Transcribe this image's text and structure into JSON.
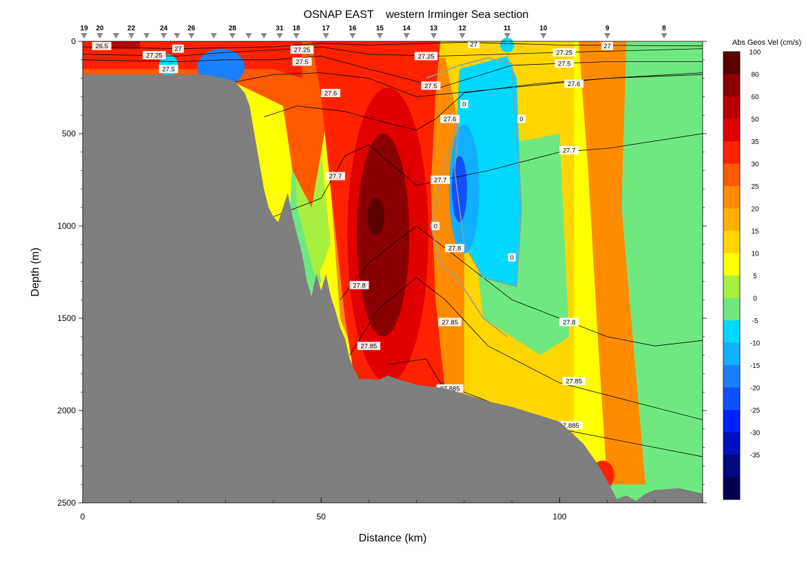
{
  "chart_data": {
    "type": "heatmap",
    "title": "OSNAP EAST    western Irminger Sea section",
    "xlabel": "Distance (km)",
    "ylabel": "Depth (m)",
    "xlim": [
      0,
      130
    ],
    "ylim": [
      0,
      2500
    ],
    "x_ticks": [
      "0",
      "50",
      "100"
    ],
    "x_tick_values": [
      0,
      50,
      100
    ],
    "y_ticks": [
      "0",
      "500",
      "1000",
      "1500",
      "2000",
      "2500"
    ],
    "y_tick_values": [
      0,
      500,
      1000,
      1500,
      2000,
      2500
    ],
    "stations": [
      {
        "label": "19",
        "km": 0.3
      },
      {
        "label": "20",
        "km": 3.6
      },
      {
        "label": "",
        "km": 7.0
      },
      {
        "label": "22",
        "km": 10.2
      },
      {
        "label": "",
        "km": 13.4
      },
      {
        "label": "24",
        "km": 17.0
      },
      {
        "label": "",
        "km": 19.8
      },
      {
        "label": "26",
        "km": 22.8
      },
      {
        "label": "",
        "km": 27.5
      },
      {
        "label": "28",
        "km": 31.4
      },
      {
        "label": "",
        "km": 34.8
      },
      {
        "label": "",
        "km": 38.0
      },
      {
        "label": "31",
        "km": 41.3
      },
      {
        "label": "18",
        "km": 44.8
      },
      {
        "label": "17",
        "km": 51.0
      },
      {
        "label": "16",
        "km": 56.6
      },
      {
        "label": "15",
        "km": 62.3
      },
      {
        "label": "14",
        "km": 67.9
      },
      {
        "label": "13",
        "km": 73.6
      },
      {
        "label": "12",
        "km": 79.6
      },
      {
        "label": "11",
        "km": 89.0
      },
      {
        "label": "10",
        "km": 96.6
      },
      {
        "label": "9",
        "km": 110.0
      },
      {
        "label": "8",
        "km": 121.9
      }
    ],
    "colorbar": {
      "title": "Abs Geos Vel (cm/s)",
      "levels": [
        100,
        80,
        60,
        50,
        35,
        30,
        25,
        20,
        15,
        10,
        5,
        0,
        -5,
        -10,
        -15,
        -20,
        -25,
        -30,
        -35
      ],
      "colors": [
        "#5a0000",
        "#8a0000",
        "#b80000",
        "#e00000",
        "#ff2200",
        "#ff5a00",
        "#ff8c00",
        "#ffb000",
        "#ffd600",
        "#ffff00",
        "#a8f040",
        "#70e880",
        "#00d8ff",
        "#10b0ff",
        "#1a80ff",
        "#1050ff",
        "#0020ff",
        "#0010c0",
        "#000880",
        "#000050"
      ]
    },
    "isopycnal_labels": [
      "26.5",
      "27",
      "27.25",
      "27.5",
      "27.6",
      "27.7",
      "27.8",
      "27.85",
      "27.885"
    ],
    "zero_contour_label": "0"
  }
}
